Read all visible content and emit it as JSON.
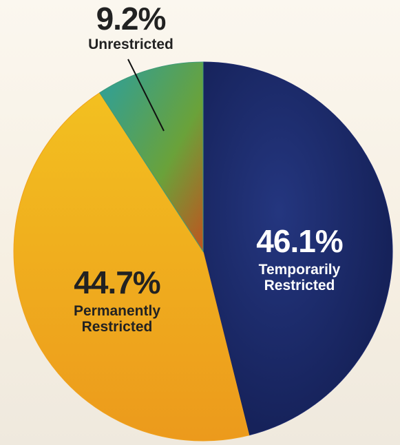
{
  "chart_data": {
    "type": "pie",
    "categories": [
      "Temporarily Restricted",
      "Permanently Restricted",
      "Unrestricted"
    ],
    "values": [
      46.1,
      44.7,
      9.2
    ],
    "value_labels": [
      "46.1%",
      "44.7%",
      "9.2%"
    ],
    "colors": [
      "#1d2a6e",
      "#f0a21e",
      "#3f9a78"
    ]
  }
}
